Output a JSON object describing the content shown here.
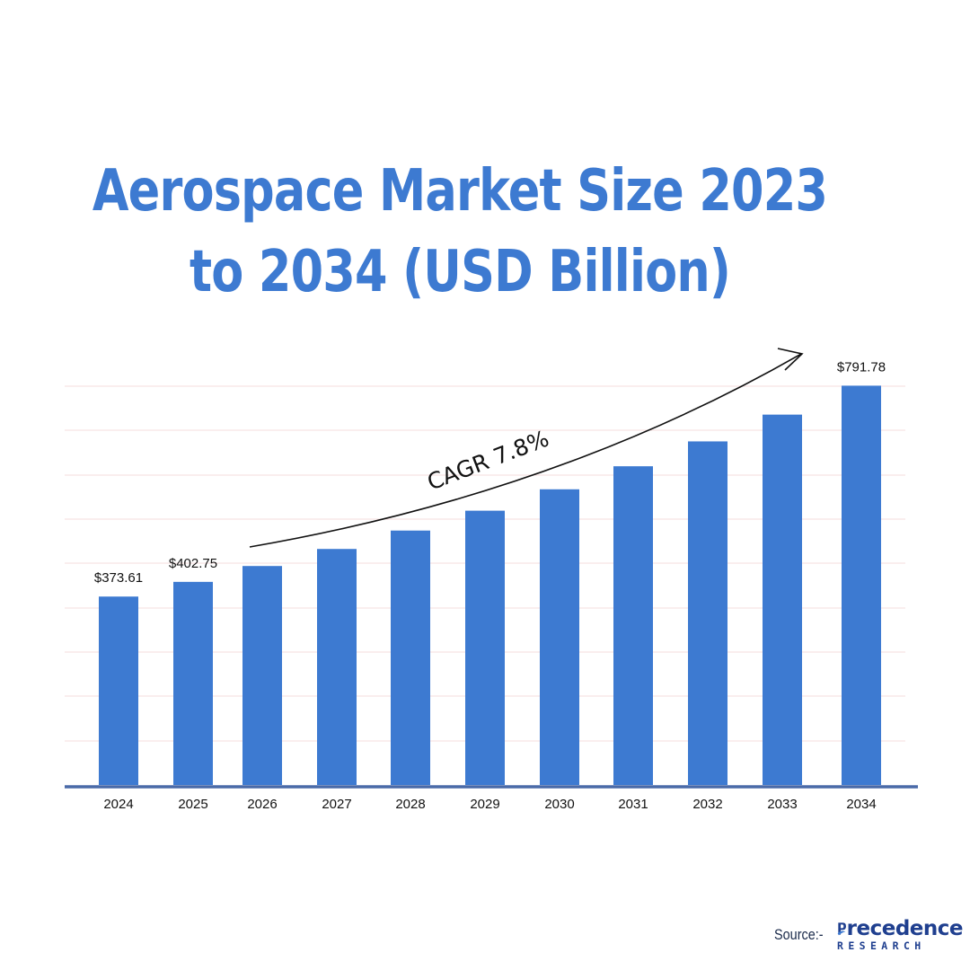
{
  "title": {
    "line1": "Aerospace Market Size 2023",
    "line2": "to 2034 (USD Billion)"
  },
  "annotation": {
    "cagr_label": "CAGR 7.8%"
  },
  "source": {
    "label": "Source:-",
    "brand_name": "recedence",
    "brand_sub": "RESEARCH"
  },
  "colors": {
    "bar": "#3d7ad1",
    "title": "#3d7ad1",
    "axis": "#4a6aa8",
    "gridline": "#f6dede",
    "brand": "#1f3f8f"
  },
  "chart_data": {
    "type": "bar",
    "title": "Aerospace Market Size 2023 to 2034 (USD Billion)",
    "categories": [
      "2024",
      "2025",
      "2026",
      "2027",
      "2028",
      "2029",
      "2030",
      "2031",
      "2032",
      "2033",
      "2034"
    ],
    "values": [
      373.61,
      402.75,
      434.2,
      468.0,
      504.5,
      543.9,
      586.3,
      632.0,
      681.3,
      734.4,
      791.78
    ],
    "value_labels": [
      "$373.61",
      "$402.75",
      null,
      null,
      null,
      null,
      null,
      null,
      null,
      null,
      "$791.78"
    ],
    "ylim": [
      0,
      820
    ],
    "grid": true,
    "legend": "none",
    "xlabel": "",
    "ylabel": ""
  }
}
